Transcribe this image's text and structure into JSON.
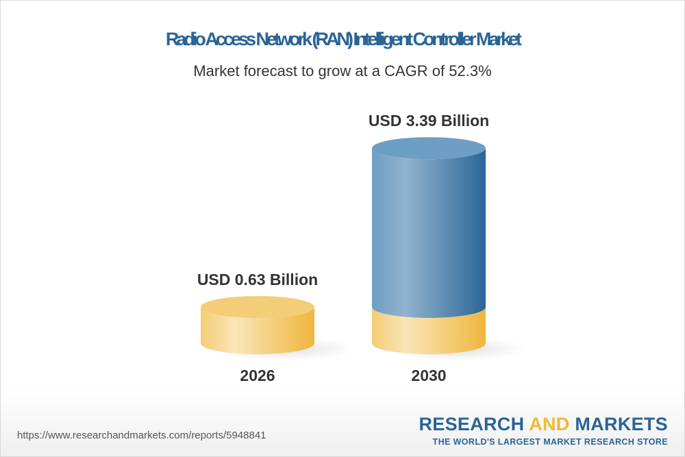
{
  "chart_data": {
    "type": "bar",
    "title": "Radio Access Network (RAN) Intelligent Controller Market",
    "subtitle": "Market forecast to grow at a CAGR of 52.3%",
    "categories": [
      "2026",
      "2030"
    ],
    "values": [
      0.63,
      3.39
    ],
    "data_labels": [
      "USD 0.63 Billion",
      "USD 3.39 Billion"
    ],
    "unit": "USD Billion",
    "colors": {
      "base": "#f0b93a",
      "growth": "#2a6496"
    }
  },
  "footer": {
    "url": "https://www.researchandmarkets.com/reports/5948841",
    "logo_part1": "RESEARCH ",
    "logo_part2": "AND",
    "logo_part3": " MARKETS",
    "tagline": "THE WORLD'S LARGEST MARKET RESEARCH STORE"
  }
}
